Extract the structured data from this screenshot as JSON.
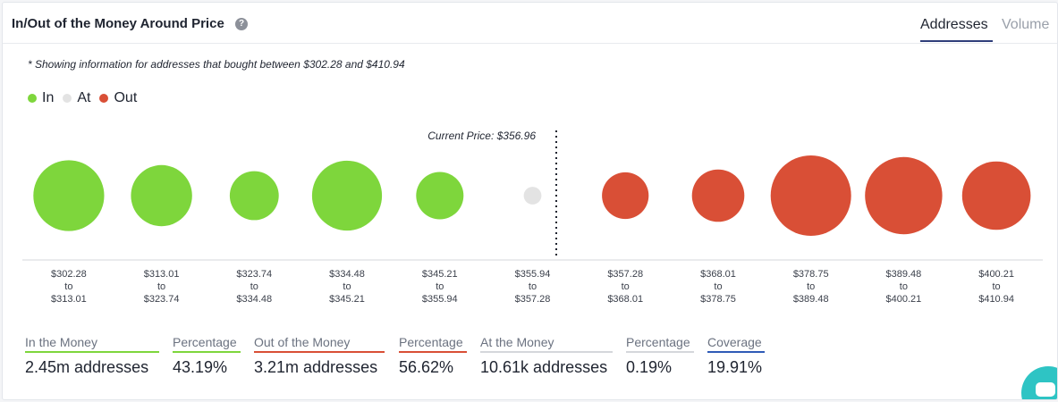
{
  "header": {
    "title": "In/Out of the Money Around Price",
    "help_icon": "?",
    "tabs": [
      {
        "label": "Addresses",
        "active": true
      },
      {
        "label": "Volume",
        "active": false
      }
    ]
  },
  "note": "* Showing information for addresses that bought between $302.28 and $410.94",
  "legend": [
    {
      "label": "In",
      "color": "#7ed63c"
    },
    {
      "label": "At",
      "color": "#e3e3e3"
    },
    {
      "label": "Out",
      "color": "#d94f36"
    }
  ],
  "current_price_label": "Current Price: $356.96",
  "chart_data": {
    "type": "bubble",
    "current_price": 356.96,
    "ranges": [
      {
        "from": "$302.28",
        "to": "$313.01",
        "status": "in",
        "relative_size": 0.88
      },
      {
        "from": "$313.01",
        "to": "$323.74",
        "status": "in",
        "relative_size": 0.76
      },
      {
        "from": "$323.74",
        "to": "$334.48",
        "status": "in",
        "relative_size": 0.61
      },
      {
        "from": "$334.48",
        "to": "$345.21",
        "status": "in",
        "relative_size": 0.87
      },
      {
        "from": "$345.21",
        "to": "$355.94",
        "status": "in",
        "relative_size": 0.59
      },
      {
        "from": "$355.94",
        "to": "$357.28",
        "status": "at",
        "relative_size": 0.22
      },
      {
        "from": "$357.28",
        "to": "$368.01",
        "status": "out",
        "relative_size": 0.58
      },
      {
        "from": "$368.01",
        "to": "$378.75",
        "status": "out",
        "relative_size": 0.65
      },
      {
        "from": "$378.75",
        "to": "$389.48",
        "status": "out",
        "relative_size": 1.0
      },
      {
        "from": "$389.48",
        "to": "$400.21",
        "status": "out",
        "relative_size": 0.96
      },
      {
        "from": "$400.21",
        "to": "$410.94",
        "status": "out",
        "relative_size": 0.85
      }
    ],
    "range_connector": "to"
  },
  "summary": [
    {
      "label": "In the Money",
      "value": "2.45m addresses",
      "color": "#7ed63c"
    },
    {
      "label": "Percentage",
      "value": "43.19%",
      "color": "#7ed63c"
    },
    {
      "label": "Out of the Money",
      "value": "3.21m addresses",
      "color": "#d94f36"
    },
    {
      "label": "Percentage",
      "value": "56.62%",
      "color": "#d94f36"
    },
    {
      "label": "At the Money",
      "value": "10.61k addresses",
      "color": "#d5d7db"
    },
    {
      "label": "Percentage",
      "value": "0.19%",
      "color": "#d5d7db"
    },
    {
      "label": "Coverage",
      "value": "19.91%",
      "color": "#2f5bb7"
    }
  ]
}
